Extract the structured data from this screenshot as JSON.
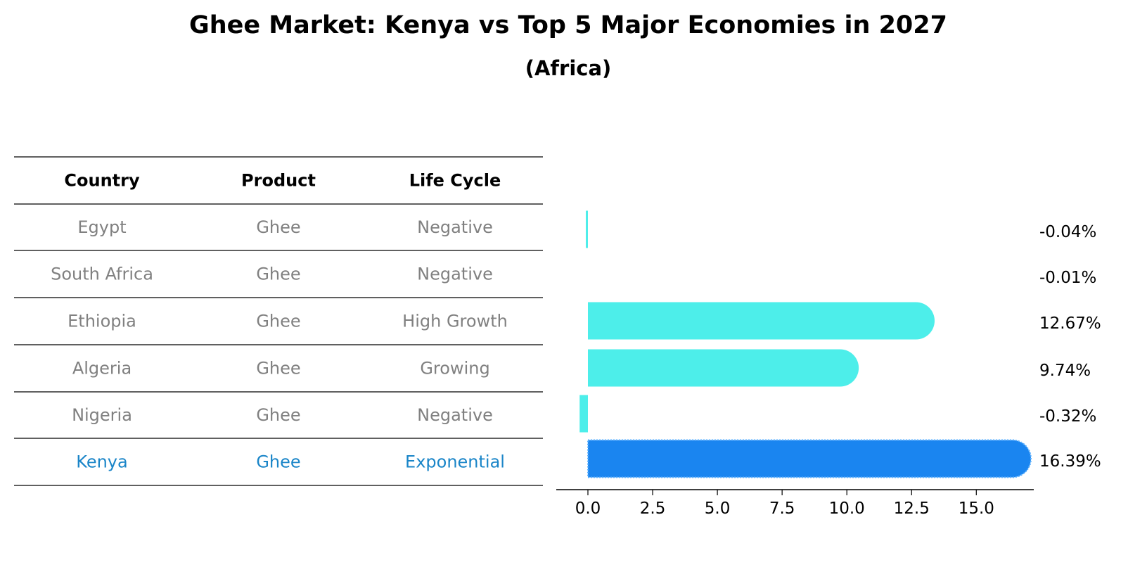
{
  "title": "Ghee Market: Kenya vs Top 5 Major Economies in 2027",
  "subtitle": "(Africa)",
  "colors": {
    "bar": "#4DEEEA",
    "highlight": "#1A85F0",
    "muted_text": "#808080",
    "highlight_text": "#1A85C8"
  },
  "table": {
    "headers": [
      "Country",
      "Product",
      "Life Cycle"
    ],
    "rows": [
      {
        "country": "Egypt",
        "product": "Ghee",
        "life_cycle": "Negative",
        "highlight": false
      },
      {
        "country": "South Africa",
        "product": "Ghee",
        "life_cycle": "Negative",
        "highlight": false
      },
      {
        "country": "Ethiopia",
        "product": "Ghee",
        "life_cycle": "High Growth",
        "highlight": false
      },
      {
        "country": "Algeria",
        "product": "Ghee",
        "life_cycle": "Growing",
        "highlight": false
      },
      {
        "country": "Nigeria",
        "product": "Ghee",
        "life_cycle": "Negative",
        "highlight": false
      },
      {
        "country": "Kenya",
        "product": "Ghee",
        "life_cycle": "Exponential",
        "highlight": true
      }
    ]
  },
  "chart_data": {
    "type": "bar",
    "orientation": "horizontal",
    "title": "Ghee Market: Kenya vs Top 5 Major Economies in 2027",
    "subtitle": "(Africa)",
    "categories": [
      "Egypt",
      "South Africa",
      "Ethiopia",
      "Algeria",
      "Nigeria",
      "Kenya"
    ],
    "values": [
      -0.04,
      -0.01,
      12.67,
      9.74,
      -0.32,
      16.39
    ],
    "value_labels": [
      "-0.04%",
      "-0.01%",
      "12.67%",
      "9.74%",
      "-0.32%",
      "16.39%"
    ],
    "highlight_category": "Kenya",
    "xlim": [
      -1.2,
      17.2
    ],
    "xticks": [
      0.0,
      2.5,
      5.0,
      7.5,
      10.0,
      12.5,
      15.0
    ],
    "xtick_labels": [
      "0.0",
      "2.5",
      "5.0",
      "7.5",
      "10.0",
      "12.5",
      "15.0"
    ],
    "xlabel": "",
    "ylabel": "",
    "grid": false,
    "legend": "none"
  }
}
